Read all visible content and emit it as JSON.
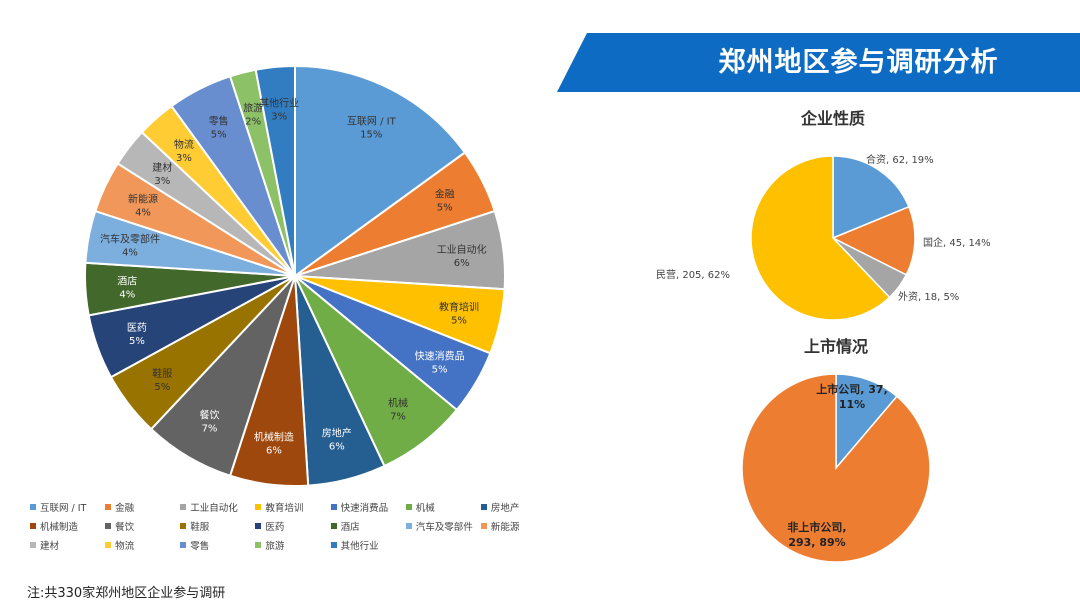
{
  "banner": {
    "title": "郑州地区参与调研分析"
  },
  "footnote": "注:共330家郑州地区企业参与调研",
  "chart_data": [
    {
      "type": "pie",
      "title": "",
      "categories": [
        "互联网 / IT",
        "金融",
        "工业自动化",
        "教育培训",
        "快速消费品",
        "机械",
        "房地产",
        "机械制造",
        "餐饮",
        "鞋服",
        "医药",
        "酒店",
        "汽车及零部件",
        "新能源",
        "建材",
        "物流",
        "零售",
        "旅游",
        "其他行业"
      ],
      "values": [
        15,
        5,
        6,
        5,
        5,
        7,
        6,
        6,
        7,
        5,
        5,
        4,
        4,
        4,
        3,
        3,
        5,
        2,
        3
      ],
      "labels": [
        "15%",
        "5%",
        "6%",
        "5%",
        "5%",
        "7%",
        "6%",
        "6%",
        "7%",
        "5%",
        "5%",
        "4%",
        "4%",
        "4%",
        "3%",
        "3%",
        "5%",
        "2%",
        "3%"
      ],
      "colors": [
        "#5b9bd5",
        "#ed7d31",
        "#a5a5a5",
        "#ffc000",
        "#4472c4",
        "#70ad47",
        "#255e91",
        "#9e480e",
        "#636363",
        "#997300",
        "#264478",
        "#43682b",
        "#7cafdd",
        "#f1975a",
        "#b7b7b7",
        "#ffcd33",
        "#698ed0",
        "#8cc168",
        "#327dc2"
      ],
      "legend_position": "bottom"
    },
    {
      "type": "pie",
      "title": "企业性质",
      "categories": [
        "合资",
        "国企",
        "外资",
        "民营"
      ],
      "values": [
        62,
        45,
        18,
        205
      ],
      "labels": [
        "合资, 62, 19%",
        "国企, 45, 14%",
        "外资, 18, 5%",
        "民营, 205, 62%"
      ],
      "colors": [
        "#5b9bd5",
        "#ed7d31",
        "#a5a5a5",
        "#ffc000"
      ]
    },
    {
      "type": "pie",
      "title": "上市情况",
      "categories": [
        "上市公司",
        "非上市公司"
      ],
      "values": [
        37,
        293
      ],
      "labels": [
        "上市公司, 37,",
        "11%",
        "非上市公司,",
        "293, 89%"
      ],
      "colors": [
        "#5b9bd5",
        "#ed7d31"
      ]
    }
  ]
}
